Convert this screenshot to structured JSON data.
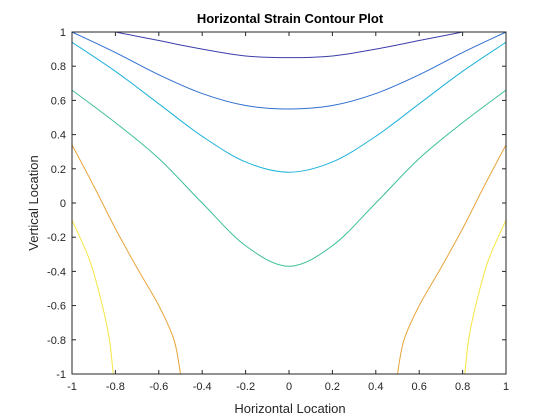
{
  "chart_data": {
    "type": "contour",
    "title": "Horizontal Strain Contour Plot",
    "xlabel": "Horizontal Location",
    "ylabel": "Vertical Location",
    "xlim": [
      -1,
      1
    ],
    "ylim": [
      -1,
      1
    ],
    "xticks": [
      "-1",
      "-0.8",
      "-0.6",
      "-0.4",
      "-0.2",
      "0",
      "0.2",
      "0.4",
      "0.6",
      "0.8",
      "1"
    ],
    "yticks": [
      "-1",
      "-0.8",
      "-0.6",
      "-0.4",
      "-0.2",
      "0",
      "0.2",
      "0.4",
      "0.6",
      "0.8",
      "1"
    ],
    "grid": false,
    "series": [
      {
        "color": "#3b3ea8",
        "shape": "valley",
        "points": [
          [
            -0.8,
            1.0
          ],
          [
            -0.6,
            0.95
          ],
          [
            -0.4,
            0.9
          ],
          [
            -0.2,
            0.86
          ],
          [
            0,
            0.85
          ],
          [
            0.2,
            0.86
          ],
          [
            0.4,
            0.9
          ],
          [
            0.6,
            0.95
          ],
          [
            0.8,
            1.0
          ]
        ]
      },
      {
        "color": "#2f6fcf",
        "shape": "valley",
        "points": [
          [
            -1.0,
            1.0
          ],
          [
            -0.8,
            0.88
          ],
          [
            -0.6,
            0.75
          ],
          [
            -0.4,
            0.64
          ],
          [
            -0.2,
            0.57
          ],
          [
            0,
            0.55
          ],
          [
            0.2,
            0.57
          ],
          [
            0.4,
            0.64
          ],
          [
            0.6,
            0.75
          ],
          [
            0.8,
            0.88
          ],
          [
            1.0,
            1.0
          ]
        ]
      },
      {
        "color": "#1fb2d9",
        "shape": "valley",
        "points": [
          [
            -1.0,
            0.94
          ],
          [
            -0.8,
            0.77
          ],
          [
            -0.6,
            0.58
          ],
          [
            -0.4,
            0.39
          ],
          [
            -0.2,
            0.24
          ],
          [
            0,
            0.18
          ],
          [
            0.2,
            0.24
          ],
          [
            0.4,
            0.39
          ],
          [
            0.6,
            0.58
          ],
          [
            0.8,
            0.77
          ],
          [
            1.0,
            0.94
          ]
        ]
      },
      {
        "color": "#3cbf9a",
        "shape": "valley",
        "points": [
          [
            -1.0,
            0.66
          ],
          [
            -0.8,
            0.47
          ],
          [
            -0.6,
            0.26
          ],
          [
            -0.4,
            0.0
          ],
          [
            -0.2,
            -0.25
          ],
          [
            0,
            -0.37
          ],
          [
            0.2,
            -0.25
          ],
          [
            0.4,
            0.0
          ],
          [
            0.6,
            0.26
          ],
          [
            0.8,
            0.47
          ],
          [
            1.0,
            0.66
          ]
        ]
      },
      {
        "color": "#e8a53a",
        "shape": "left-arc",
        "points": [
          [
            -1.0,
            0.34
          ],
          [
            -0.9,
            0.1
          ],
          [
            -0.8,
            -0.15
          ],
          [
            -0.7,
            -0.38
          ],
          [
            -0.6,
            -0.6
          ],
          [
            -0.53,
            -0.8
          ],
          [
            -0.5,
            -1.0
          ]
        ]
      },
      {
        "color": "#e8a53a",
        "shape": "right-arc",
        "points": [
          [
            1.0,
            0.34
          ],
          [
            0.9,
            0.1
          ],
          [
            0.8,
            -0.15
          ],
          [
            0.7,
            -0.38
          ],
          [
            0.6,
            -0.6
          ],
          [
            0.53,
            -0.8
          ],
          [
            0.5,
            -1.0
          ]
        ]
      },
      {
        "color": "#f5e642",
        "shape": "left-arc",
        "points": [
          [
            -1.0,
            -0.1
          ],
          [
            -0.92,
            -0.33
          ],
          [
            -0.87,
            -0.55
          ],
          [
            -0.83,
            -0.78
          ],
          [
            -0.81,
            -1.0
          ]
        ]
      },
      {
        "color": "#f5e642",
        "shape": "right-arc",
        "points": [
          [
            1.0,
            -0.1
          ],
          [
            0.92,
            -0.33
          ],
          [
            0.87,
            -0.55
          ],
          [
            0.83,
            -0.78
          ],
          [
            0.81,
            -1.0
          ]
        ]
      }
    ]
  }
}
